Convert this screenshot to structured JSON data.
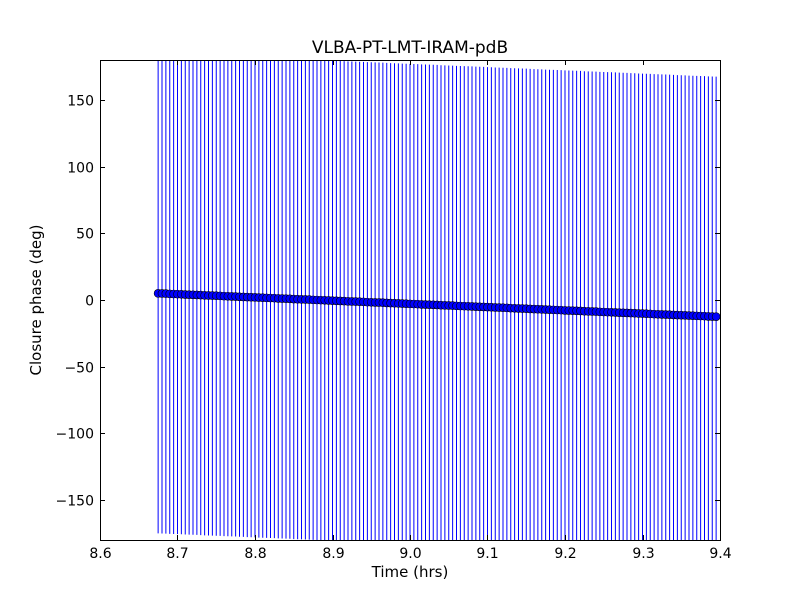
{
  "chart_data": {
    "type": "scatter",
    "title": "VLBA-PT-LMT-IRAM-pdB",
    "xlabel": "Time (hrs)",
    "ylabel": "Closure phase (deg)",
    "xlim": [
      8.6,
      9.4
    ],
    "ylim": [
      -180,
      180
    ],
    "xticks": [
      "8.6",
      "8.7",
      "8.8",
      "8.9",
      "9.0",
      "9.1",
      "9.2",
      "9.3",
      "9.4"
    ],
    "yticks": [
      "−150",
      "−100",
      "−50",
      "0",
      "50",
      "100",
      "150"
    ],
    "ytick_values": [
      -150,
      -100,
      -50,
      0,
      50,
      100,
      150
    ],
    "xtick_values": [
      8.6,
      8.7,
      8.8,
      8.9,
      9.0,
      9.1,
      9.2,
      9.3,
      9.4
    ],
    "grid": false,
    "marker_color": "#0000ff",
    "errorbar_color": "#0000ff",
    "yerr": 180,
    "x": [
      8.675,
      8.68,
      8.685,
      8.69,
      8.695,
      8.7,
      8.705,
      8.71,
      8.715,
      8.72,
      8.725,
      8.73,
      8.735,
      8.74,
      8.745,
      8.75,
      8.755,
      8.76,
      8.765,
      8.77,
      8.775,
      8.78,
      8.785,
      8.79,
      8.795,
      8.8,
      8.805,
      8.81,
      8.815,
      8.82,
      8.825,
      8.83,
      8.835,
      8.84,
      8.845,
      8.85,
      8.855,
      8.86,
      8.865,
      8.87,
      8.875,
      8.88,
      8.885,
      8.89,
      8.895,
      8.9,
      8.905,
      8.91,
      8.915,
      8.92,
      8.925,
      8.93,
      8.935,
      8.94,
      8.945,
      8.95,
      8.955,
      8.96,
      8.965,
      8.97,
      8.975,
      8.98,
      8.985,
      8.99,
      8.995,
      9.0,
      9.005,
      9.01,
      9.015,
      9.02,
      9.025,
      9.03,
      9.035,
      9.04,
      9.045,
      9.05,
      9.055,
      9.06,
      9.065,
      9.07,
      9.075,
      9.08,
      9.085,
      9.09,
      9.095,
      9.1,
      9.105,
      9.11,
      9.115,
      9.12,
      9.125,
      9.13,
      9.135,
      9.14,
      9.145,
      9.15,
      9.155,
      9.16,
      9.165,
      9.17,
      9.175,
      9.18,
      9.185,
      9.19,
      9.195,
      9.2,
      9.205,
      9.21,
      9.215,
      9.22,
      9.225,
      9.23,
      9.235,
      9.24,
      9.245,
      9.25,
      9.255,
      9.26,
      9.265,
      9.27,
      9.275,
      9.28,
      9.285,
      9.29,
      9.295,
      9.3,
      9.305,
      9.31,
      9.315,
      9.32,
      9.325,
      9.33,
      9.335,
      9.34,
      9.345,
      9.35,
      9.355,
      9.36,
      9.365,
      9.37,
      9.375,
      9.38,
      9.385,
      9.39,
      9.395
    ],
    "y": [
      5.0,
      4.9,
      4.8,
      4.6,
      4.5,
      4.4,
      4.3,
      4.1,
      4.0,
      3.9,
      3.8,
      3.7,
      3.5,
      3.4,
      3.3,
      3.2,
      3.1,
      2.9,
      2.8,
      2.7,
      2.6,
      2.4,
      2.3,
      2.2,
      2.1,
      2.0,
      1.8,
      1.7,
      1.6,
      1.5,
      1.4,
      1.2,
      1.1,
      1.0,
      0.9,
      0.7,
      0.6,
      0.5,
      0.4,
      0.3,
      0.1,
      0.0,
      -0.1,
      -0.2,
      -0.3,
      -0.5,
      -0.6,
      -0.7,
      -0.8,
      -1.0,
      -1.1,
      -1.2,
      -1.3,
      -1.4,
      -1.6,
      -1.7,
      -1.8,
      -1.9,
      -2.0,
      -2.2,
      -2.3,
      -2.4,
      -2.5,
      -2.7,
      -2.8,
      -2.9,
      -3.0,
      -3.1,
      -3.3,
      -3.4,
      -3.5,
      -3.6,
      -3.7,
      -3.9,
      -4.0,
      -4.1,
      -4.2,
      -4.4,
      -4.5,
      -4.6,
      -4.7,
      -4.8,
      -5.0,
      -5.1,
      -5.2,
      -5.3,
      -5.4,
      -5.6,
      -5.7,
      -5.8,
      -5.9,
      -6.1,
      -6.2,
      -6.3,
      -6.4,
      -6.5,
      -6.7,
      -6.8,
      -6.9,
      -7.0,
      -7.2,
      -7.3,
      -7.4,
      -7.5,
      -7.6,
      -7.8,
      -7.9,
      -8.0,
      -8.1,
      -8.2,
      -8.4,
      -8.5,
      -8.6,
      -8.7,
      -8.9,
      -9.0,
      -9.1,
      -9.2,
      -9.3,
      -9.5,
      -9.6,
      -9.7,
      -9.8,
      -9.9,
      -10.1,
      -10.2,
      -10.3,
      -10.4,
      -10.6,
      -10.7,
      -10.8,
      -10.9,
      -11.0,
      -11.2,
      -11.3,
      -11.4,
      -11.5,
      -11.7,
      -11.8,
      -11.9,
      -12.0,
      -12.1,
      -12.3,
      -12.4,
      -12.5
    ]
  }
}
